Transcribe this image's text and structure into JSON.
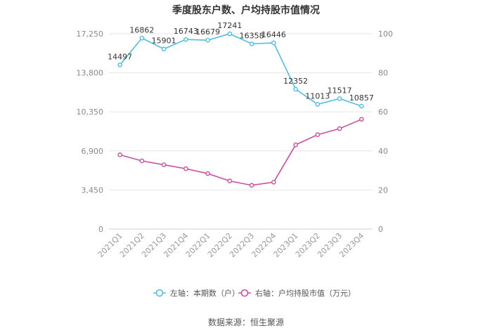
{
  "title": "季度股东户数、户均持股市值情况",
  "source": "数据来源：恒生聚源",
  "chart_data": {
    "type": "line",
    "categories": [
      "2021Q1",
      "2021Q2",
      "2021Q3",
      "2021Q4",
      "2022Q1",
      "2022Q2",
      "2022Q3",
      "2022Q4",
      "2023Q1",
      "2023Q2",
      "2023Q3",
      "2023Q4"
    ],
    "y_left": {
      "ticks": [
        "0",
        "3,450",
        "6,900",
        "10,350",
        "13,800",
        "17,250"
      ],
      "range": [
        0,
        17250
      ]
    },
    "y_right": {
      "ticks": [
        "0",
        "20",
        "40",
        "60",
        "80",
        "100"
      ],
      "range": [
        0,
        100
      ]
    },
    "grid": true,
    "legend_position": "bottom",
    "series": [
      {
        "name": "左轴：本期数（户）",
        "axis": "left",
        "color": "#4dbde8",
        "values": [
          14497,
          16862,
          15901,
          16743,
          16679,
          17241,
          16358,
          16446,
          12352,
          11013,
          11517,
          10857
        ],
        "labels": [
          "14497",
          "16862",
          "15901",
          "16743",
          "16679",
          "17241",
          "16358",
          "16446",
          "12352",
          "11013",
          "11517",
          "10857"
        ]
      },
      {
        "name": "右轴：户均持股市值（万元）",
        "axis": "right",
        "color": "#c9509e",
        "values": [
          38.0,
          34.9,
          32.9,
          30.9,
          28.4,
          24.6,
          22.4,
          24.0,
          43.1,
          48.3,
          51.4,
          56.2
        ]
      }
    ]
  }
}
